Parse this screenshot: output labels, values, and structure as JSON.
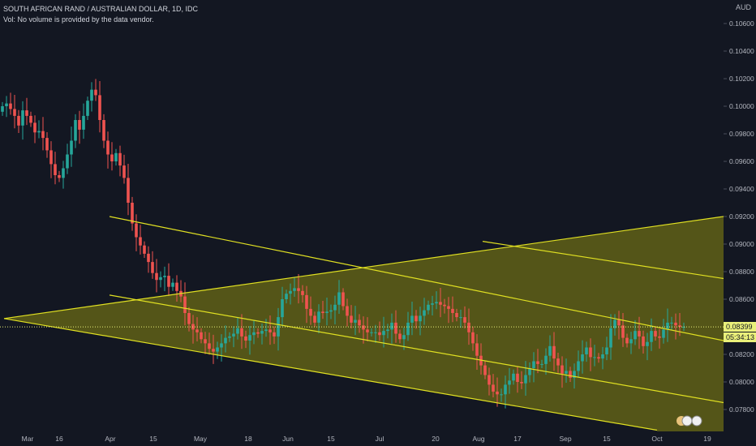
{
  "header": {
    "title": "SOUTH AFRICAN RAND / AUSTRALIAN DOLLAR, 1D, IDC",
    "volume_note": "Vol: No volume is provided by the data vendor.",
    "currency": "AUD"
  },
  "price_label": {
    "value": "0.08399",
    "countdown": "05:34:13",
    "color": "#eaf07a"
  },
  "colors": {
    "background": "#131722",
    "up": "#26a69a",
    "down": "#ef5350",
    "channel_line": "#e0e022",
    "channel_fill": "#6b6b15"
  },
  "chart_data": {
    "type": "candlestick",
    "title": "SOUTH AFRICAN RAND / AUSTRALIAN DOLLAR, 1D, IDC",
    "ylabel": "AUD",
    "ylim": [
      0.0776,
      0.107
    ],
    "y_ticks": [
      "0.10600",
      "0.10400",
      "0.10200",
      "0.10000",
      "0.09800",
      "0.09600",
      "0.09400",
      "0.09200",
      "0.09000",
      "0.08800",
      "0.08600",
      "0.08200",
      "0.08000",
      "0.07800"
    ],
    "x_ticks": [
      "Mar",
      "16",
      "Apr",
      "15",
      "May",
      "18",
      "Jun",
      "15",
      "Jul",
      "20",
      "Aug",
      "17",
      "Sep",
      "15",
      "Oct",
      "19"
    ],
    "grid": false,
    "closes": [
      0.1,
      0.1002,
      0.0998,
      0.0993,
      0.0986,
      0.0997,
      0.0993,
      0.0988,
      0.0981,
      0.0982,
      0.0977,
      0.0968,
      0.0958,
      0.095,
      0.0948,
      0.0955,
      0.0965,
      0.0975,
      0.099,
      0.0983,
      0.0993,
      0.1004,
      0.1012,
      0.1008,
      0.099,
      0.0975,
      0.0965,
      0.096,
      0.0966,
      0.0957,
      0.0948,
      0.093,
      0.0915,
      0.0905,
      0.0899,
      0.0893,
      0.0887,
      0.0879,
      0.0874,
      0.0876,
      0.0877,
      0.0869,
      0.0872,
      0.0866,
      0.0862,
      0.085,
      0.0842,
      0.0838,
      0.0836,
      0.0831,
      0.0828,
      0.0824,
      0.0822,
      0.0825,
      0.0828,
      0.0832,
      0.0833,
      0.0835,
      0.0839,
      0.0833,
      0.083,
      0.0834,
      0.0836,
      0.0835,
      0.0837,
      0.0838,
      0.0836,
      0.0833,
      0.0847,
      0.086,
      0.0864,
      0.0866,
      0.0868,
      0.0866,
      0.0863,
      0.0853,
      0.0848,
      0.0843,
      0.0851,
      0.085,
      0.0851,
      0.0852,
      0.0856,
      0.0865,
      0.0855,
      0.0848,
      0.0843,
      0.0845,
      0.0841,
      0.0838,
      0.0836,
      0.0836,
      0.0836,
      0.0834,
      0.0837,
      0.0838,
      0.0843,
      0.0835,
      0.0831,
      0.0834,
      0.0843,
      0.0848,
      0.0844,
      0.0848,
      0.0852,
      0.0856,
      0.0857,
      0.0858,
      0.0856,
      0.0855,
      0.0853,
      0.085,
      0.0847,
      0.0847,
      0.0843,
      0.0836,
      0.0828,
      0.0819,
      0.0812,
      0.0805,
      0.0798,
      0.0793,
      0.0791,
      0.0791,
      0.0798,
      0.0801,
      0.0806,
      0.08,
      0.0799,
      0.0805,
      0.081,
      0.0815,
      0.0813,
      0.0813,
      0.0819,
      0.0826,
      0.0817,
      0.0812,
      0.0806,
      0.0808,
      0.0803,
      0.0808,
      0.0815,
      0.082,
      0.0825,
      0.0818,
      0.0818,
      0.0817,
      0.082,
      0.0825,
      0.0839,
      0.0845,
      0.0841,
      0.0832,
      0.0828,
      0.0831,
      0.0837,
      0.0833,
      0.0826,
      0.0829,
      0.0837,
      0.0833,
      0.0832,
      0.0838,
      0.0843,
      0.0843,
      0.0841,
      0.084,
      0.084
    ],
    "channel": {
      "upper_line": {
        "from": [
          "Mar",
          0.0846
        ],
        "to": [
          "19+",
          0.092
        ]
      },
      "lower_line": {
        "from": [
          "Mar",
          0.0846
        ],
        "to": [
          "Oct",
          0.0765
        ]
      },
      "parallel_lines": [
        {
          "from": [
            "Apr",
            0.092
          ],
          "to": [
            "19+",
            0.083
          ]
        },
        {
          "from": [
            "Apr",
            0.0863
          ],
          "to": [
            "19+",
            0.0785
          ]
        },
        {
          "from": [
            "Aug",
            0.0902
          ],
          "to": [
            "19+",
            0.0875
          ]
        }
      ]
    }
  }
}
